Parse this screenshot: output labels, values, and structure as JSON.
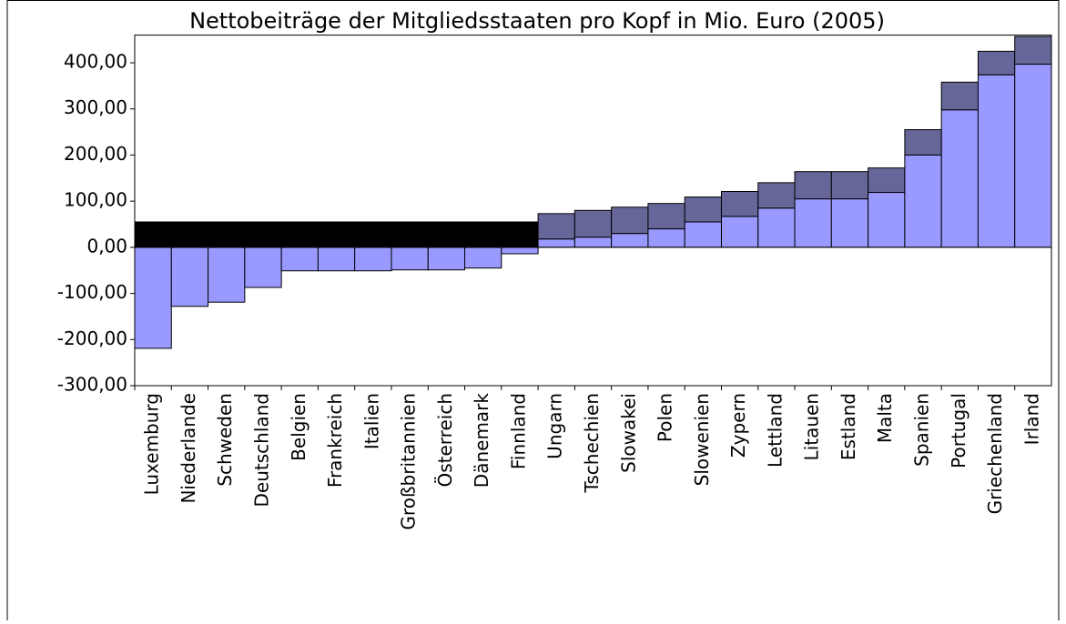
{
  "chart_data": {
    "type": "bar",
    "stacked": true,
    "title": "Nettobeiträge der Mitgliedsstaaten pro Kopf in Mio. Euro (2005)",
    "categories": [
      "Luxemburg",
      "Niederlande",
      "Schweden",
      "Deutschland",
      "Belgien",
      "Frankreich",
      "Italien",
      "Großbritannien",
      "Österreich",
      "Dänemark",
      "Finnland",
      "Ungarn",
      "Tschechien",
      "Slowakei",
      "Polen",
      "Slowenien",
      "Zypern",
      "Lettland",
      "Litauen",
      "Estland",
      "Malta",
      "Spanien",
      "Portugal",
      "Griechenland",
      "Irland"
    ],
    "series": [
      {
        "color": "#9999ff",
        "values": [
          -219,
          -128,
          -119,
          -87,
          -51,
          -51,
          -51,
          -49,
          -49,
          -45,
          -14,
          18,
          22,
          30,
          40,
          55,
          67,
          85,
          105,
          105,
          119,
          200,
          298,
          374,
          397
        ]
      },
      {
        "color": "#000000",
        "values": [
          55,
          55,
          55,
          55,
          55,
          55,
          55,
          55,
          55,
          55,
          55,
          null,
          null,
          null,
          null,
          null,
          null,
          null,
          null,
          null,
          null,
          null,
          null,
          null,
          null
        ]
      },
      {
        "color": "#666699",
        "values": [
          null,
          null,
          null,
          null,
          null,
          null,
          null,
          null,
          null,
          null,
          null,
          55,
          58,
          57,
          55,
          54,
          54,
          55,
          59,
          59,
          53,
          55,
          60,
          51,
          60
        ]
      }
    ],
    "ylim": [
      -300,
      460
    ],
    "yticks": [
      {
        "value": -300,
        "label": "-300,00"
      },
      {
        "value": -200,
        "label": "-200,00"
      },
      {
        "value": -100,
        "label": "-100,00"
      },
      {
        "value": 0,
        "label": "0,00"
      },
      {
        "value": 100,
        "label": "100,00"
      },
      {
        "value": 200,
        "label": "200,00"
      },
      {
        "value": 300,
        "label": "300,00"
      },
      {
        "value": 400,
        "label": "400,00"
      }
    ],
    "grid": false
  }
}
